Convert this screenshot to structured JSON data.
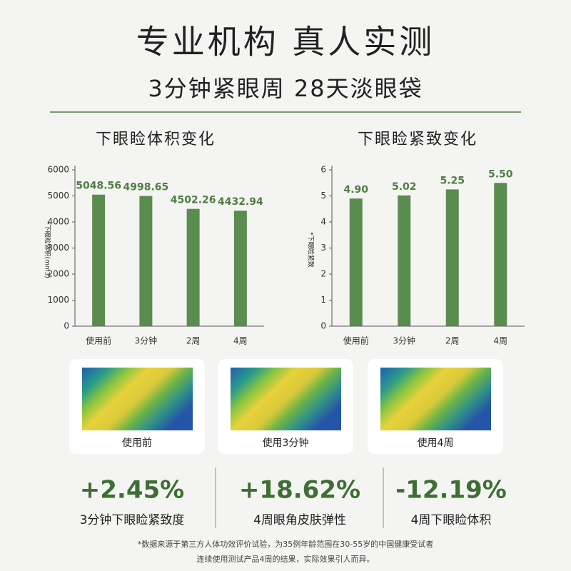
{
  "header": {
    "title": "专业机构 真人实测",
    "subtitle": "3分钟紧眼周 28天淡眼袋"
  },
  "chart_data": [
    {
      "type": "bar",
      "title": "下眼睑体积变化",
      "y_label": "*下眼睑体积(mm3)",
      "categories": [
        "使用前",
        "3分钟",
        "2周",
        "4周"
      ],
      "values": [
        5048.56,
        4998.65,
        4502.26,
        4432.94
      ],
      "color": "#5b8c4f",
      "ylim": [
        0,
        6000
      ],
      "yticks": [
        0,
        1000,
        2000,
        3000,
        4000,
        5000,
        6000
      ]
    },
    {
      "type": "bar",
      "title": "下眼睑紧致变化",
      "y_label": "*下眼睑紧致",
      "categories": [
        "使用前",
        "3分钟",
        "2周",
        "4周"
      ],
      "values": [
        4.9,
        5.02,
        5.25,
        5.5
      ],
      "value_labels": [
        "4.90",
        "5.02",
        "5.25",
        "5.50"
      ],
      "color": "#5b8c4f",
      "ylim": [
        0,
        6
      ],
      "yticks": [
        0,
        1,
        2,
        3,
        4,
        5,
        6
      ]
    }
  ],
  "images": [
    {
      "caption": "使用前"
    },
    {
      "caption": "使用3分钟"
    },
    {
      "caption": "使用4周"
    }
  ],
  "stats": [
    {
      "value": "+2.45%",
      "label": "3分钟下眼睑紧致度"
    },
    {
      "value": "+18.62%",
      "label": "4周眼角皮肤弹性"
    },
    {
      "value": "-12.19%",
      "label": "4周下眼睑体积"
    }
  ],
  "footnote": [
    "*数据来源于第三方人体功效评价试验，为35例年龄范围在30-55岁的中国健康受试者",
    "连续使用测试产品4周的结果，实际效果引人而异。"
  ]
}
